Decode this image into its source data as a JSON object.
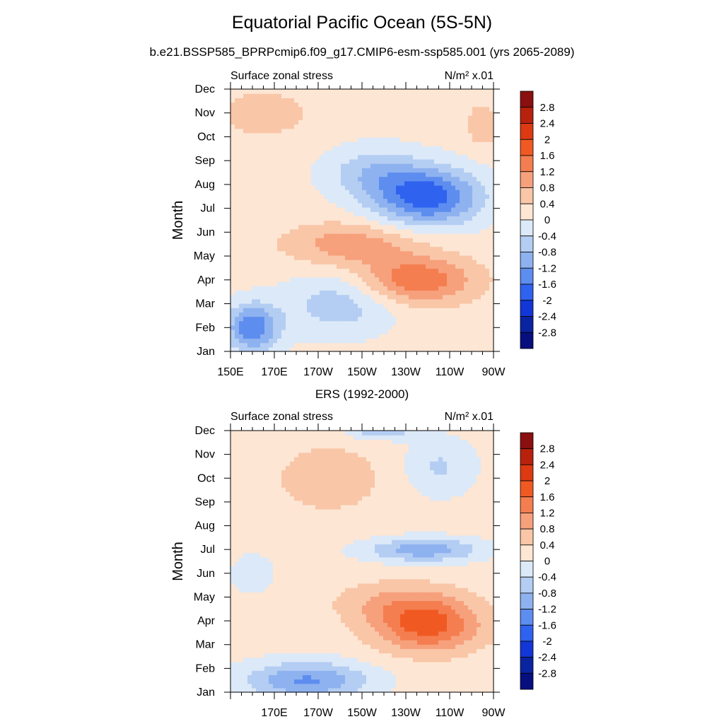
{
  "figure": {
    "title": "Equatorial Pacific Ocean (5S-5N)",
    "subtitle": "b.e21.BSSP585_BPRPcmip6.f09_g17.CMIP6-esm-ssp585.001 (yrs 2065-2089)"
  },
  "colorbar": {
    "labels": [
      "2.8",
      "2.4",
      "2",
      "1.6",
      "1.2",
      "0.8",
      "0.4",
      "0",
      "-0.4",
      "-0.8",
      "-1.2",
      "-1.6",
      "-2",
      "-2.4",
      "-2.8"
    ],
    "colors": [
      "#8a0f0f",
      "#b8220c",
      "#dd3a12",
      "#f05a22",
      "#f47e50",
      "#f7a07c",
      "#f9c6a8",
      "#fde6d4",
      "#dce9f8",
      "#b4cdf3",
      "#8eb2ef",
      "#5d8def",
      "#2f62ef",
      "#1237d6",
      "#0a239f",
      "#060f7d"
    ]
  },
  "chart_data": [
    {
      "type": "heatmap",
      "panel_title": "",
      "left_label": "Surface zonal stress",
      "units_label": "N/m² x.01",
      "ylabel": "Month",
      "x_ticks": [
        "150E",
        "170E",
        "170W",
        "150W",
        "130W",
        "110W",
        "90W"
      ],
      "y_ticks": [
        "Jan",
        "Feb",
        "Mar",
        "Apr",
        "May",
        "Jun",
        "Jul",
        "Aug",
        "Sep",
        "Oct",
        "Nov",
        "Dec"
      ],
      "x_range_lon_east": [
        150,
        270
      ],
      "levels": [
        -2.8,
        -2.4,
        -2,
        -1.6,
        -1.2,
        -0.8,
        -0.4,
        0,
        0.4,
        0.8,
        1.2,
        1.6,
        2,
        2.4,
        2.8
      ],
      "features": [
        {
          "lon": 160,
          "month": 2,
          "amp": -1.7,
          "sx": 12,
          "sy": 1.0
        },
        {
          "lon": 200,
          "month": 3,
          "amp": -0.8,
          "sx": 25,
          "sy": 1.3
        },
        {
          "lon": 235,
          "month": 4,
          "amp": 1.4,
          "sx": 26,
          "sy": 1.0
        },
        {
          "lon": 205,
          "month": 5.5,
          "amp": 0.9,
          "sx": 30,
          "sy": 0.9
        },
        {
          "lon": 240,
          "month": 7.5,
          "amp": -2.0,
          "sx": 24,
          "sy": 1.2
        },
        {
          "lon": 215,
          "month": 8.5,
          "amp": -0.8,
          "sx": 22,
          "sy": 1.1
        },
        {
          "lon": 165,
          "month": 11,
          "amp": 0.5,
          "sx": 22,
          "sy": 1.0
        },
        {
          "lon": 265,
          "month": 10.5,
          "amp": 0.5,
          "sx": 8,
          "sy": 1.0
        }
      ]
    },
    {
      "type": "heatmap",
      "panel_title": "ERS (1992-2000)",
      "left_label": "Surface zonal stress",
      "units_label": "N/m² x.01",
      "ylabel": "Month",
      "x_ticks": [
        "170E",
        "170W",
        "150W",
        "130W",
        "110W",
        "90W"
      ],
      "y_ticks": [
        "Jan",
        "Feb",
        "Mar",
        "Apr",
        "May",
        "Jun",
        "Jul",
        "Aug",
        "Sep",
        "Oct",
        "Nov",
        "Dec"
      ],
      "x_range_lon_east": [
        150,
        270
      ],
      "levels": [
        -2.8,
        -2.4,
        -2,
        -1.6,
        -1.2,
        -0.8,
        -0.4,
        0,
        0.4,
        0.8,
        1.2,
        1.6,
        2,
        2.4,
        2.8
      ],
      "features": [
        {
          "lon": 185,
          "month": 1.5,
          "amp": -1.4,
          "sx": 28,
          "sy": 0.8
        },
        {
          "lon": 240,
          "month": 3.8,
          "amp": 1.6,
          "sx": 24,
          "sy": 1.1
        },
        {
          "lon": 225,
          "month": 4.8,
          "amp": 0.6,
          "sx": 28,
          "sy": 0.9
        },
        {
          "lon": 238,
          "month": 7.0,
          "amp": -1.2,
          "sx": 26,
          "sy": 0.5
        },
        {
          "lon": 195,
          "month": 10,
          "amp": 0.5,
          "sx": 26,
          "sy": 1.5
        },
        {
          "lon": 245,
          "month": 10.5,
          "amp": -0.6,
          "sx": 16,
          "sy": 1.2
        },
        {
          "lon": 218,
          "month": 12,
          "amp": -1.0,
          "sx": 14,
          "sy": 0.35
        },
        {
          "lon": 160,
          "month": 6,
          "amp": -0.3,
          "sx": 12,
          "sy": 1.0
        }
      ]
    }
  ]
}
